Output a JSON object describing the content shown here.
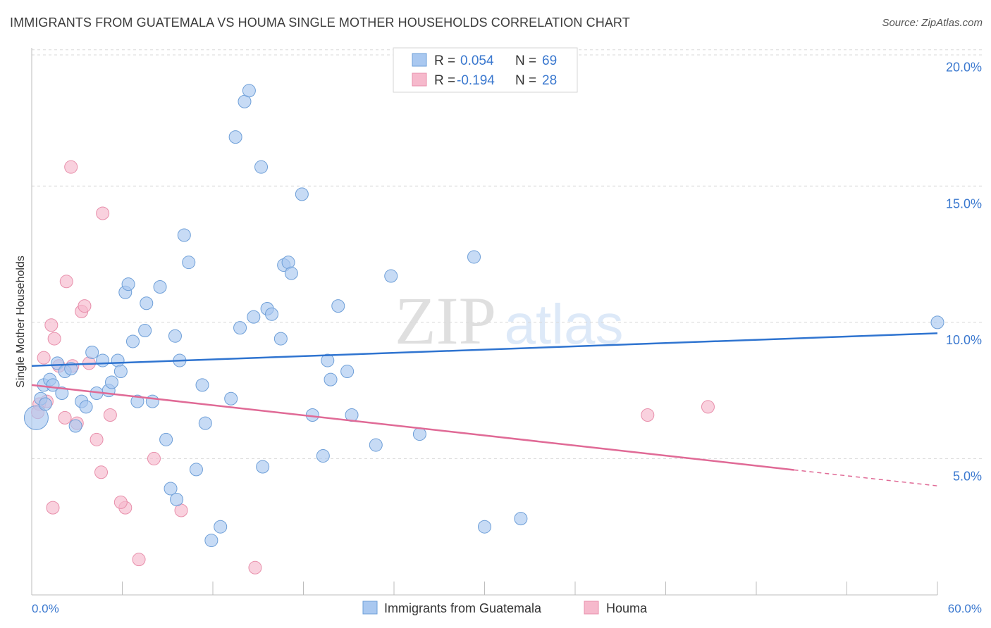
{
  "title": "IMMIGRANTS FROM GUATEMALA VS HOUMA SINGLE MOTHER HOUSEHOLDS CORRELATION CHART",
  "source": "Source: ZipAtlas.com",
  "watermark": {
    "zip": "ZIP",
    "atlas": "atlas"
  },
  "legend_box": {
    "rows": [
      {
        "r_label": "R =",
        "r_value": "0.054",
        "n_label": "N =",
        "n_value": "69"
      },
      {
        "r_label": "R =",
        "r_value": "-0.194",
        "n_label": "N =",
        "n_value": "28"
      }
    ]
  },
  "colors": {
    "blue_fill": "#a9c8f0",
    "blue_stroke": "#6e9fd8",
    "blue_line": "#2f74d0",
    "pink_fill": "#f6b9cc",
    "pink_stroke": "#e88fab",
    "pink_line": "#e06a96",
    "value_text": "#3a78cf",
    "grid": "#d9d9d9"
  },
  "chart_data": {
    "type": "scatter",
    "title": "IMMIGRANTS FROM GUATEMALA VS HOUMA SINGLE MOTHER HOUSEHOLDS CORRELATION CHART",
    "xlabel": "",
    "ylabel": "Single Mother Households",
    "xlim": [
      0,
      60
    ],
    "ylim": [
      0,
      21
    ],
    "x_tick_labels": [
      "0.0%",
      "60.0%"
    ],
    "y_ticks": [
      5,
      10,
      15,
      20
    ],
    "y_tick_labels": [
      "5.0%",
      "10.0%",
      "15.0%",
      "20.0%"
    ],
    "grid": "horizontal dashed",
    "legend_position": "bottom-center",
    "series": [
      {
        "name": "Immigrants from Guatemala",
        "r": 0.054,
        "n": 69,
        "trend": {
          "x": [
            0,
            60
          ],
          "y": [
            8.4,
            9.6
          ],
          "solid_to": 60
        },
        "points": [
          [
            0.3,
            6.5
          ],
          [
            0.6,
            7.2
          ],
          [
            0.9,
            7.0
          ],
          [
            0.8,
            7.7
          ],
          [
            1.2,
            7.9
          ],
          [
            1.4,
            7.7
          ],
          [
            1.7,
            8.5
          ],
          [
            2.0,
            7.4
          ],
          [
            2.2,
            8.2
          ],
          [
            2.6,
            8.3
          ],
          [
            2.9,
            6.2
          ],
          [
            3.3,
            7.1
          ],
          [
            3.6,
            6.9
          ],
          [
            4.0,
            8.9
          ],
          [
            4.3,
            7.4
          ],
          [
            4.7,
            8.6
          ],
          [
            5.1,
            7.5
          ],
          [
            5.3,
            7.8
          ],
          [
            5.7,
            8.6
          ],
          [
            5.9,
            8.2
          ],
          [
            6.2,
            11.1
          ],
          [
            6.4,
            11.4
          ],
          [
            6.7,
            9.3
          ],
          [
            7.0,
            7.1
          ],
          [
            7.5,
            9.7
          ],
          [
            7.6,
            10.7
          ],
          [
            8.0,
            7.1
          ],
          [
            8.5,
            11.3
          ],
          [
            8.9,
            5.7
          ],
          [
            9.2,
            3.9
          ],
          [
            9.5,
            9.5
          ],
          [
            9.6,
            3.5
          ],
          [
            9.8,
            8.6
          ],
          [
            10.1,
            13.2
          ],
          [
            10.4,
            12.2
          ],
          [
            10.9,
            4.6
          ],
          [
            11.3,
            7.7
          ],
          [
            11.5,
            6.3
          ],
          [
            11.9,
            2.0
          ],
          [
            12.5,
            2.5
          ],
          [
            13.2,
            7.2
          ],
          [
            13.5,
            16.8
          ],
          [
            13.8,
            9.8
          ],
          [
            14.1,
            18.1
          ],
          [
            14.4,
            18.5
          ],
          [
            14.7,
            10.2
          ],
          [
            15.2,
            15.7
          ],
          [
            15.3,
            4.7
          ],
          [
            15.6,
            10.5
          ],
          [
            15.9,
            10.3
          ],
          [
            16.5,
            9.4
          ],
          [
            16.7,
            12.1
          ],
          [
            17.0,
            12.2
          ],
          [
            17.2,
            11.8
          ],
          [
            17.9,
            14.7
          ],
          [
            18.6,
            6.6
          ],
          [
            19.3,
            5.1
          ],
          [
            19.6,
            8.6
          ],
          [
            19.8,
            7.9
          ],
          [
            20.3,
            10.6
          ],
          [
            20.9,
            8.2
          ],
          [
            21.2,
            6.6
          ],
          [
            22.8,
            5.5
          ],
          [
            23.8,
            11.7
          ],
          [
            25.7,
            5.9
          ],
          [
            29.3,
            12.4
          ],
          [
            30.0,
            2.5
          ],
          [
            32.4,
            2.8
          ],
          [
            60.0,
            10.0
          ]
        ]
      },
      {
        "name": "Houma",
        "r": -0.194,
        "n": 28,
        "trend": {
          "x": [
            0,
            60
          ],
          "y": [
            7.7,
            4.0
          ],
          "solid_to": 50.5
        },
        "points": [
          [
            0.5,
            7.0
          ],
          [
            0.8,
            8.7
          ],
          [
            1.0,
            7.1
          ],
          [
            1.3,
            9.9
          ],
          [
            1.5,
            9.4
          ],
          [
            1.8,
            8.4
          ],
          [
            2.2,
            6.5
          ],
          [
            2.3,
            11.5
          ],
          [
            2.7,
            8.4
          ],
          [
            2.6,
            15.7
          ],
          [
            3.0,
            6.3
          ],
          [
            3.3,
            10.4
          ],
          [
            3.5,
            10.6
          ],
          [
            3.8,
            8.5
          ],
          [
            4.3,
            5.7
          ],
          [
            4.6,
            4.5
          ],
          [
            4.7,
            14.0
          ],
          [
            5.2,
            6.6
          ],
          [
            6.2,
            3.2
          ],
          [
            5.9,
            3.4
          ],
          [
            7.1,
            1.3
          ],
          [
            8.1,
            5.0
          ],
          [
            9.9,
            3.1
          ],
          [
            14.8,
            1.0
          ],
          [
            40.8,
            6.6
          ],
          [
            44.8,
            6.9
          ],
          [
            0.4,
            6.7
          ],
          [
            1.4,
            3.2
          ]
        ]
      }
    ]
  }
}
